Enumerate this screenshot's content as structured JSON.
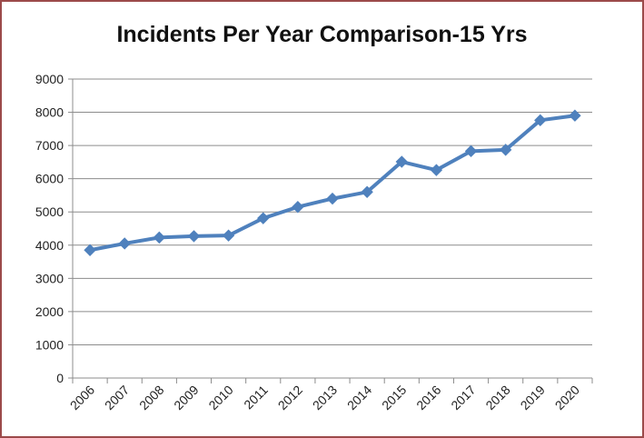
{
  "chart_data": {
    "type": "line",
    "title": "Incidents Per Year Comparison-15 Yrs",
    "xlabel": "",
    "ylabel": "",
    "categories": [
      "2006",
      "2007",
      "2008",
      "2009",
      "2010",
      "2011",
      "2012",
      "2013",
      "2014",
      "2015",
      "2016",
      "2017",
      "2018",
      "2019",
      "2020"
    ],
    "series": [
      {
        "values": [
          3850,
          4050,
          4230,
          4270,
          4290,
          4810,
          5150,
          5400,
          5600,
          6510,
          6260,
          6830,
          6870,
          7760,
          7900
        ],
        "color": "#4f81bd",
        "marker": "diamond"
      }
    ],
    "ylim": [
      0,
      9000
    ],
    "yticks": [
      0,
      1000,
      2000,
      3000,
      4000,
      5000,
      6000,
      7000,
      8000,
      9000
    ],
    "grid": true,
    "legend": "none",
    "colors": {
      "line": "#4f81bd",
      "grid": "#8c8c8c",
      "axis": "#8c8c8c",
      "frame": "#9c4a4a"
    }
  }
}
